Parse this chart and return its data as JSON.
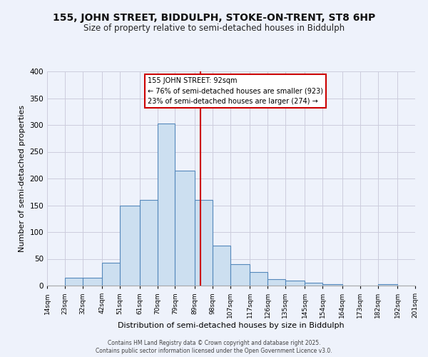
{
  "title1": "155, JOHN STREET, BIDDULPH, STOKE-ON-TRENT, ST8 6HP",
  "title2": "Size of property relative to semi-detached houses in Biddulph",
  "xlabel": "Distribution of semi-detached houses by size in Biddulph",
  "ylabel": "Number of semi-detached properties",
  "bin_labels": [
    "14sqm",
    "23sqm",
    "32sqm",
    "42sqm",
    "51sqm",
    "61sqm",
    "70sqm",
    "79sqm",
    "89sqm",
    "98sqm",
    "107sqm",
    "117sqm",
    "126sqm",
    "135sqm",
    "145sqm",
    "154sqm",
    "164sqm",
    "173sqm",
    "182sqm",
    "192sqm",
    "201sqm"
  ],
  "bin_edges": [
    14,
    23,
    32,
    42,
    51,
    61,
    70,
    79,
    89,
    98,
    107,
    117,
    126,
    135,
    145,
    154,
    164,
    173,
    182,
    192,
    201
  ],
  "bar_heights": [
    0,
    15,
    15,
    43,
    150,
    160,
    303,
    215,
    160,
    75,
    40,
    25,
    12,
    10,
    5,
    3,
    0,
    0,
    3,
    0
  ],
  "bar_color": "#ccdff0",
  "bar_edge_color": "#5588bb",
  "property_size": 92,
  "vline_color": "#cc0000",
  "annotation_title": "155 JOHN STREET: 92sqm",
  "annotation_line1": "← 76% of semi-detached houses are smaller (923)",
  "annotation_line2": "23% of semi-detached houses are larger (274) →",
  "annotation_box_color": "#ffffff",
  "annotation_border_color": "#cc0000",
  "ylim": [
    0,
    400
  ],
  "yticks": [
    0,
    50,
    100,
    150,
    200,
    250,
    300,
    350,
    400
  ],
  "background_color": "#eef2fb",
  "grid_color": "#ccccdd",
  "footnote1": "Contains HM Land Registry data © Crown copyright and database right 2025.",
  "footnote2": "Contains public sector information licensed under the Open Government Licence v3.0.",
  "title1_fontsize": 10,
  "title2_fontsize": 8.5,
  "xlabel_fontsize": 8,
  "ylabel_fontsize": 8
}
